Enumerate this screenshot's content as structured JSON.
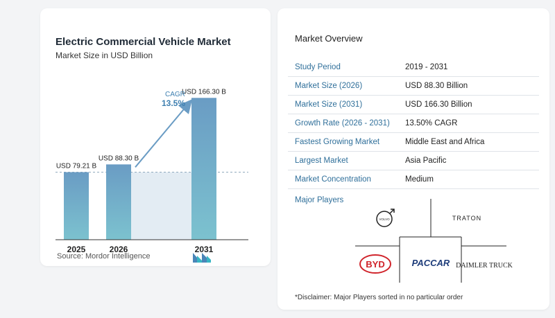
{
  "chart": {
    "title": "Electric Commercial Vehicle Market",
    "subtitle": "Market Size in USD Billion",
    "source": "Source:  Mordor Intelligence",
    "cagr_label": "CAGR",
    "cagr_value": "13.5%",
    "colors": {
      "bar": "#6a9cc4",
      "bar_light": "#7cc2cf",
      "area": "#e3ecf3",
      "arrow": "#6a9cc4",
      "cagr_text": "#3d7fb0"
    }
  },
  "chart_data": {
    "type": "bar",
    "title": "Electric Commercial Vehicle Market",
    "subtitle": "Market Size in USD Billion",
    "categories": [
      "2025",
      "2026",
      "2031"
    ],
    "values": [
      79.21,
      88.3,
      166.3
    ],
    "data_labels": [
      "USD 79.21 B",
      "USD 88.30 B",
      "USD 166.30 B"
    ],
    "annotations": [
      {
        "text": "CAGR",
        "value": "13.5%"
      }
    ],
    "ylim": [
      0,
      175
    ],
    "grid": false,
    "unit": "USD Billion"
  },
  "overview": {
    "title": "Market Overview",
    "rows": [
      {
        "key": "Study Period",
        "value": "2019 - 2031"
      },
      {
        "key": "Market Size (2026)",
        "value": "USD 88.30 Billion"
      },
      {
        "key": "Market Size (2031)",
        "value": "USD 166.30 Billion"
      },
      {
        "key": "Growth Rate (2026 - 2031)",
        "value": "13.50% CAGR"
      },
      {
        "key": "Fastest Growing Market",
        "value": "Middle East and Africa"
      },
      {
        "key": "Largest Market",
        "value": "Asia Pacific"
      },
      {
        "key": "Market Concentration",
        "value": "Medium"
      }
    ],
    "players_label": "Major Players",
    "players": {
      "volvo": "VOLVO",
      "traton": "TRATON",
      "byd": "BYD",
      "paccar": "PACCAR",
      "daimler": "DAIMLER TRUCK"
    },
    "disclaimer": "*Disclaimer: Major Players sorted in no particular order"
  }
}
